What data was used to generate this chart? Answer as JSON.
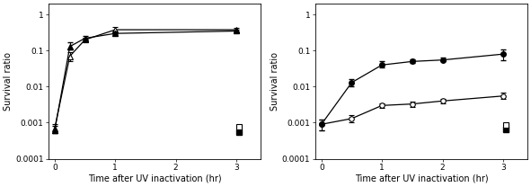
{
  "left": {
    "ylabel": "Survival ratio",
    "xlabel": "Time after UV inactivation (hr)",
    "ylim": [
      0.0001,
      2.0
    ],
    "xlim": [
      -0.1,
      3.4
    ],
    "xticks": [
      0,
      1,
      2,
      3
    ],
    "lp_triangle_filled": {
      "x": [
        0,
        0.25,
        0.5,
        1.0,
        3.0
      ],
      "y": [
        0.0006,
        0.13,
        0.22,
        0.3,
        0.35
      ],
      "yerr_lo": [
        0.0001,
        0.02,
        0.02,
        0.02,
        0.02
      ],
      "yerr_hi": [
        0.0002,
        0.04,
        0.04,
        0.04,
        0.04
      ]
    },
    "mp_triangle_open": {
      "x": [
        0,
        0.25,
        0.5,
        1.0,
        3.0
      ],
      "y": [
        0.0007,
        0.07,
        0.2,
        0.38,
        0.38
      ],
      "yerr_lo": [
        0.0002,
        0.02,
        0.03,
        0.08,
        0.05
      ],
      "yerr_hi": [
        0.0002,
        0.02,
        0.03,
        0.08,
        0.05
      ]
    },
    "dark_lp_square_filled": {
      "x": [
        3.05
      ],
      "y": [
        0.00055
      ]
    },
    "dark_mp_square_open": {
      "x": [
        3.05
      ],
      "y": [
        0.00075
      ]
    }
  },
  "right": {
    "ylabel": "Survival ratio",
    "xlabel": "Time after UV inactivation (hr)",
    "ylim": [
      0.0001,
      2.0
    ],
    "xlim": [
      -0.1,
      3.4
    ],
    "xticks": [
      0,
      1,
      2,
      3
    ],
    "lp_circle_filled": {
      "x": [
        0,
        0.5,
        1.0,
        1.5,
        2.0,
        3.0
      ],
      "y": [
        0.0009,
        0.013,
        0.04,
        0.05,
        0.055,
        0.08
      ],
      "yerr_lo": [
        0.0003,
        0.003,
        0.005,
        0.005,
        0.005,
        0.025
      ],
      "yerr_hi": [
        0.0003,
        0.003,
        0.01,
        0.008,
        0.008,
        0.03
      ]
    },
    "mp_circle_open": {
      "x": [
        0,
        0.5,
        1.0,
        1.5,
        2.0,
        3.0
      ],
      "y": [
        0.0009,
        0.0013,
        0.003,
        0.0033,
        0.004,
        0.0055
      ],
      "yerr_lo": [
        0.0003,
        0.0003,
        0.0005,
        0.0005,
        0.0006,
        0.001
      ],
      "yerr_hi": [
        0.0003,
        0.0003,
        0.0005,
        0.0005,
        0.0006,
        0.0015
      ]
    },
    "dark_lp_square_filled": {
      "x": [
        3.05
      ],
      "y": [
        0.00065
      ]
    },
    "dark_mp_square_open": {
      "x": [
        3.05
      ],
      "y": [
        0.00085
      ]
    }
  },
  "figure_width": 5.91,
  "figure_height": 2.08,
  "dpi": 100,
  "line_color": "#000000",
  "marker_size": 4,
  "capsize": 2,
  "fontsize_label": 7,
  "fontsize_tick": 6.5
}
